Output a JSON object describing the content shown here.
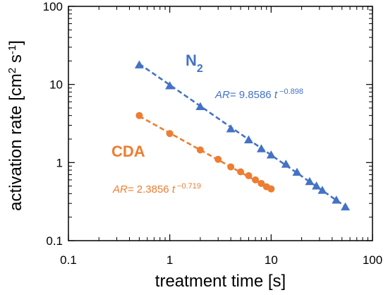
{
  "chart_data": {
    "type": "scatter",
    "xlabel": "treatment time [s]",
    "ylabel_main": "activation rate [cm",
    "ylabel_sup1": "2",
    "ylabel_mid": " s",
    "ylabel_sup2": "-1",
    "ylabel_end": "]",
    "xscale": "log",
    "yscale": "log",
    "xlim": [
      0.1,
      100
    ],
    "ylim": [
      0.1,
      100
    ],
    "x_ticks": [
      0.1,
      1,
      10,
      100
    ],
    "x_tick_labels": [
      "0.1",
      "1",
      "10",
      "100"
    ],
    "y_ticks": [
      0.1,
      1,
      10,
      100
    ],
    "y_tick_labels": [
      "0.1",
      "1",
      "10",
      "100"
    ],
    "series": [
      {
        "name": "N",
        "name_sub": "2",
        "color": "#4472C4",
        "marker": "triangle",
        "fit_text": "= 9.8586 ",
        "fit_var": "AR",
        "fit_t": "t",
        "fit_exp": " −0.898",
        "coef": 9.8586,
        "exponent": -0.898,
        "points": [
          [
            0.5,
            17.8
          ],
          [
            1,
            9.6
          ],
          [
            2,
            5.2
          ],
          [
            4,
            2.7
          ],
          [
            6,
            1.95
          ],
          [
            8,
            1.5
          ],
          [
            10,
            1.25
          ],
          [
            14,
            0.95
          ],
          [
            18,
            0.75
          ],
          [
            24,
            0.57
          ],
          [
            28,
            0.5
          ],
          [
            32,
            0.44
          ],
          [
            44,
            0.33
          ],
          [
            54,
            0.27
          ]
        ]
      },
      {
        "name": "CDA",
        "color": "#ED7D31",
        "marker": "circle",
        "fit_text": "= 2.3856 ",
        "fit_var": "AR",
        "fit_t": "t",
        "fit_exp": " −0.719",
        "coef": 2.3856,
        "exponent": -0.719,
        "points": [
          [
            0.5,
            4.0
          ],
          [
            1,
            2.35
          ],
          [
            2,
            1.45
          ],
          [
            3,
            1.1
          ],
          [
            4,
            0.88
          ],
          [
            5,
            0.76
          ],
          [
            6,
            0.68
          ],
          [
            7,
            0.6
          ],
          [
            8,
            0.54
          ],
          [
            9,
            0.49
          ],
          [
            10,
            0.46
          ]
        ]
      }
    ]
  }
}
